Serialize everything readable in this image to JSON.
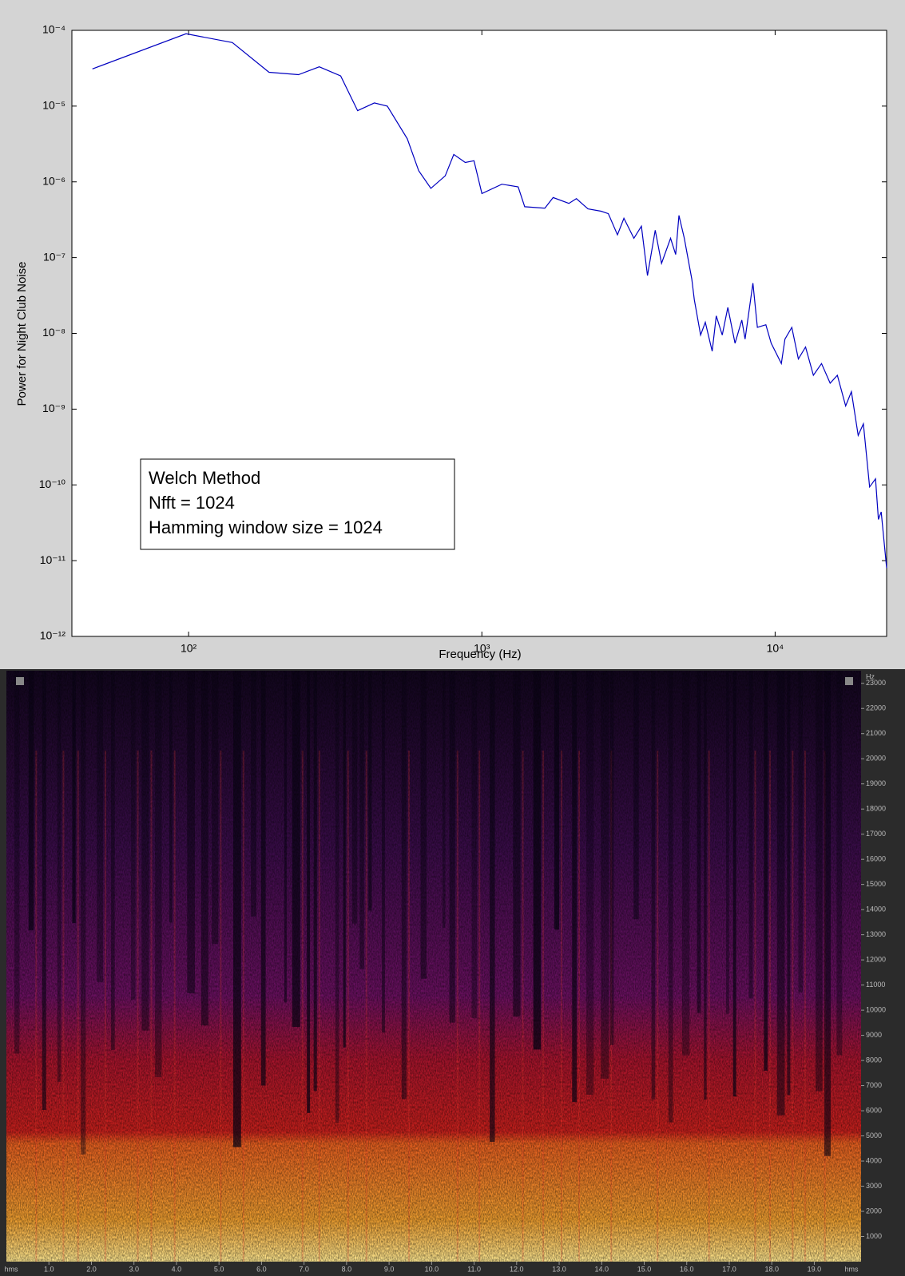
{
  "chart_data": [
    {
      "type": "line",
      "xscale": "log",
      "yscale": "log",
      "x_label": "Frequency (Hz)",
      "y_label": "Power for Night Club Noise",
      "annotation": [
        "Welch Method",
        "Nfft = 1024",
        "Hamming window size = 1024"
      ],
      "color": "#0000c0",
      "xlim": [
        40,
        24000
      ],
      "ylim": [
        1e-12,
        0.0001
      ],
      "xticks": [
        {
          "value": 100,
          "label": "10²"
        },
        {
          "value": 1000,
          "label": "10³"
        },
        {
          "value": 10000,
          "label": "10⁴"
        }
      ],
      "yticks": [
        {
          "value": 0.0001,
          "label": "10⁻⁴"
        },
        {
          "value": 1e-05,
          "label": "10⁻⁵"
        },
        {
          "value": 1e-06,
          "label": "10⁻⁶"
        },
        {
          "value": 1e-07,
          "label": "10⁻⁷"
        },
        {
          "value": 1e-08,
          "label": "10⁻⁸"
        },
        {
          "value": 1e-09,
          "label": "10⁻⁹"
        },
        {
          "value": 1e-10,
          "label": "10⁻¹⁰"
        },
        {
          "value": 1e-11,
          "label": "10⁻¹¹"
        },
        {
          "value": 1e-12,
          "label": "10⁻¹²"
        }
      ],
      "x": [
        47,
        98,
        141,
        188,
        237,
        279,
        330,
        377,
        430,
        476,
        557,
        609,
        670,
        750,
        802,
        878,
        940,
        1000,
        1170,
        1330,
        1400,
        1640,
        1750,
        1980,
        2100,
        2300,
        2550,
        2700,
        2900,
        3050,
        3300,
        3500,
        3670,
        3900,
        4100,
        4400,
        4580,
        4700,
        4900,
        5200,
        5300,
        5570,
        5780,
        6100,
        6300,
        6600,
        6900,
        7300,
        7700,
        7900,
        8400,
        8700,
        9300,
        9700,
        10500,
        10800,
        11400,
        12000,
        12700,
        13500,
        14400,
        15400,
        16300,
        17400,
        18200,
        19200,
        20000,
        21000,
        22000,
        22500,
        23000,
        24000
      ],
      "values": [
        3.1e-05,
        9e-05,
        6.9e-05,
        2.8e-05,
        2.6e-05,
        3.3e-05,
        2.5e-05,
        8.7e-06,
        1.1e-05,
        1e-05,
        3.7e-06,
        1.4e-06,
        8.2e-07,
        1.2e-06,
        2.3e-06,
        1.8e-06,
        1.9e-06,
        7e-07,
        9.3e-07,
        8.6e-07,
        4.7e-07,
        4.5e-07,
        6.2e-07,
        5.2e-07,
        6e-07,
        4.4e-07,
        4.1e-07,
        3.8e-07,
        2e-07,
        3.3e-07,
        1.8e-07,
        2.6e-07,
        5.8e-08,
        2.3e-07,
        8.4e-08,
        1.8e-07,
        1.1e-07,
        3.6e-07,
        1.8e-07,
        5.2e-08,
        2.8e-08,
        9.5e-09,
        1.4e-08,
        5.8e-09,
        1.7e-08,
        9.5e-09,
        2.2e-08,
        7.4e-09,
        1.5e-08,
        8.4e-09,
        4.6e-08,
        1.2e-08,
        1.3e-08,
        7.4e-09,
        4e-09,
        8.4e-09,
        1.2e-08,
        4.6e-09,
        6.6e-09,
        2.8e-09,
        4e-09,
        2.2e-09,
        2.8e-09,
        1.1e-09,
        1.7e-09,
        4.5e-10,
        6.4e-10,
        9.4e-11,
        1.2e-10,
        3.5e-11,
        4.4e-11,
        8e-12
      ]
    },
    {
      "type": "spectrogram",
      "x_unit": "hms",
      "y_label": "Hz",
      "xlim": [
        0,
        20.1
      ],
      "ylim": [
        0,
        23500
      ],
      "xticks": [
        {
          "value": 1,
          "label": "1.0"
        },
        {
          "value": 2,
          "label": "2.0"
        },
        {
          "value": 3,
          "label": "3.0"
        },
        {
          "value": 4,
          "label": "4.0"
        },
        {
          "value": 5,
          "label": "5.0"
        },
        {
          "value": 6,
          "label": "6.0"
        },
        {
          "value": 7,
          "label": "7.0"
        },
        {
          "value": 8,
          "label": "8.0"
        },
        {
          "value": 9,
          "label": "9.0"
        },
        {
          "value": 10,
          "label": "10.0"
        },
        {
          "value": 11,
          "label": "11.0"
        },
        {
          "value": 12,
          "label": "12.0"
        },
        {
          "value": 13,
          "label": "13.0"
        },
        {
          "value": 14,
          "label": "14.0"
        },
        {
          "value": 15,
          "label": "15.0"
        },
        {
          "value": 16,
          "label": "16.0"
        },
        {
          "value": 17,
          "label": "17.0"
        },
        {
          "value": 18,
          "label": "18.0"
        },
        {
          "value": 19,
          "label": "19.0"
        }
      ],
      "yticks": [
        1000,
        2000,
        3000,
        4000,
        5000,
        6000,
        7000,
        8000,
        9000,
        10000,
        11000,
        12000,
        13000,
        14000,
        15000,
        16000,
        17000,
        18000,
        19000,
        20000,
        21000,
        22000,
        23000
      ]
    }
  ]
}
